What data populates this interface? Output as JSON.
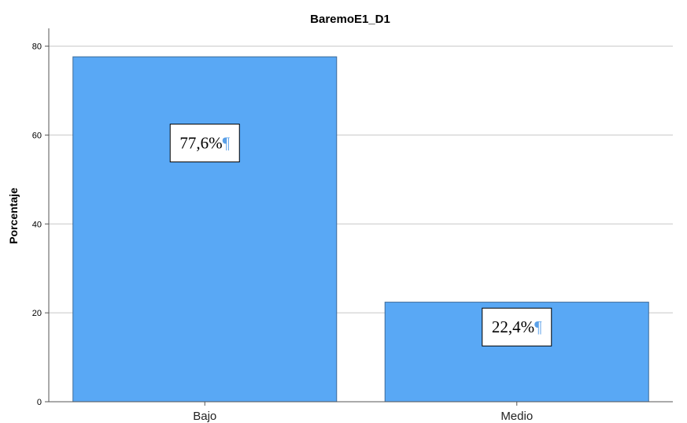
{
  "chart_data": {
    "type": "bar",
    "title": "BaremoE1_D1",
    "xlabel": "",
    "ylabel": "Porcentaje",
    "categories": [
      "Bajo",
      "Medio"
    ],
    "values": [
      77.6,
      22.4
    ],
    "data_labels": [
      "77,6%",
      "22,4%"
    ],
    "data_label_mark": "¶",
    "ylim": [
      0,
      84
    ],
    "yticks": [
      0,
      20,
      40,
      60,
      80
    ],
    "grid": true,
    "legend": "none",
    "colors": {
      "bar": "#59a8f5",
      "bar_edge": "#3c6a99",
      "grid": "#c8c8c8",
      "axis": "#555555"
    }
  }
}
